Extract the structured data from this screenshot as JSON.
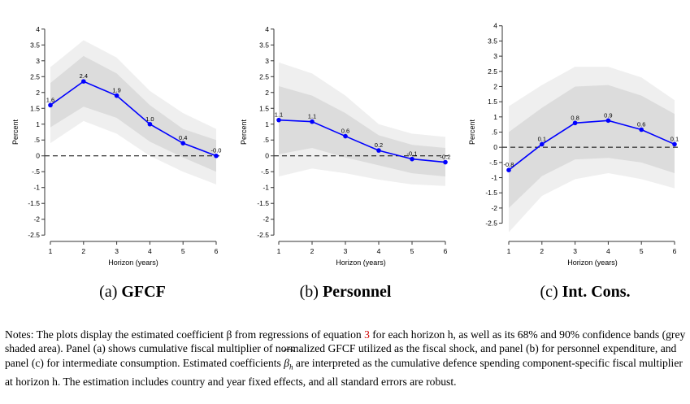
{
  "chart_data": [
    {
      "type": "line",
      "panel": "a",
      "caption_letter": "(a)",
      "caption_label": "GFCF",
      "xlabel": "Horizon (years)",
      "ylabel": "Percent",
      "x": [
        1,
        2,
        3,
        4,
        5,
        6
      ],
      "xticks": [
        "1",
        "2",
        "3",
        "4",
        "5",
        "6"
      ],
      "values": [
        1.6,
        2.35,
        1.9,
        1.0,
        0.4,
        0.0
      ],
      "data_labels": [
        "1.6",
        "2.4",
        "1.9",
        "1.0",
        "0.4",
        "-0.0"
      ],
      "ci68_low": [
        0.9,
        1.55,
        1.2,
        0.45,
        -0.05,
        -0.5
      ],
      "ci68_high": [
        2.3,
        3.15,
        2.6,
        1.6,
        0.85,
        0.5
      ],
      "ci90_low": [
        0.4,
        1.1,
        0.7,
        0.0,
        -0.5,
        -0.9
      ],
      "ci90_high": [
        2.8,
        3.65,
        3.1,
        2.05,
        1.35,
        0.85
      ],
      "ylim": [
        -2.7,
        4.2
      ],
      "yticks": [
        -2.5,
        -2,
        -1.5,
        -1,
        -0.5,
        0,
        0.5,
        1,
        1.5,
        2,
        2.5,
        3,
        3.5,
        4
      ],
      "ytick_labels": [
        "-2.5",
        "-2",
        "-1.5",
        "-1",
        "-.5",
        "0",
        ".5",
        "1",
        "1.5",
        "2",
        "2.5",
        "3",
        "3.5",
        "4"
      ],
      "line_color": "#0000ff",
      "band68_color": "#dcdcdc",
      "band90_color": "#efefef"
    },
    {
      "type": "line",
      "panel": "b",
      "caption_letter": "(b)",
      "caption_label": "Personnel",
      "xlabel": "Horizon (years)",
      "ylabel": "Percent",
      "x": [
        1,
        2,
        3,
        4,
        5,
        6
      ],
      "xticks": [
        "1",
        "2",
        "3",
        "4",
        "5",
        "6"
      ],
      "values": [
        1.13,
        1.08,
        0.62,
        0.17,
        -0.1,
        -0.2
      ],
      "data_labels": [
        "1.1",
        "1.1",
        "0.6",
        "0.2",
        "-0.1",
        "-0.2"
      ],
      "ci68_low": [
        0.05,
        0.25,
        -0.05,
        -0.3,
        -0.55,
        -0.65
      ],
      "ci68_high": [
        2.2,
        1.9,
        1.35,
        0.65,
        0.35,
        0.25
      ],
      "ci90_low": [
        -0.65,
        -0.4,
        -0.55,
        -0.75,
        -0.9,
        -0.95
      ],
      "ci90_high": [
        2.95,
        2.6,
        1.9,
        1.0,
        0.7,
        0.6
      ],
      "ylim": [
        -2.7,
        4.2
      ],
      "yticks": [
        -2.5,
        -2,
        -1.5,
        -1,
        -0.5,
        0,
        0.5,
        1,
        1.5,
        2,
        2.5,
        3,
        3.5,
        4
      ],
      "ytick_labels": [
        "-2.5",
        "-2",
        "-1.5",
        "-1",
        "-.5",
        "0",
        ".5",
        "1",
        "1.5",
        "2",
        "2.5",
        "3",
        "3.5",
        "4"
      ],
      "line_color": "#0000ff",
      "band68_color": "#dcdcdc",
      "band90_color": "#efefef"
    },
    {
      "type": "line",
      "panel": "c",
      "caption_letter": "(c)",
      "caption_label": "Int. Cons.",
      "xlabel": "Horizon (years)",
      "ylabel": "Percent",
      "x": [
        1,
        2,
        3,
        4,
        5,
        6
      ],
      "xticks": [
        "1",
        "2",
        "3",
        "4",
        "5",
        "6"
      ],
      "values": [
        -0.75,
        0.1,
        0.8,
        0.88,
        0.58,
        0.1
      ],
      "data_labels": [
        "-0.8",
        "0.1",
        "0.8",
        "0.9",
        "0.6",
        "0.1"
      ],
      "ci68_low": [
        -2.0,
        -0.95,
        -0.4,
        -0.35,
        -0.5,
        -0.85
      ],
      "ci68_high": [
        0.5,
        1.3,
        2.0,
        2.05,
        1.7,
        1.1
      ],
      "ci90_low": [
        -2.8,
        -1.6,
        -1.05,
        -0.85,
        -1.05,
        -1.35
      ],
      "ci90_high": [
        1.35,
        2.05,
        2.65,
        2.65,
        2.3,
        1.55
      ],
      "ylim": [
        -3.1,
        4.1
      ],
      "yticks": [
        -2.5,
        -2,
        -1.5,
        -1,
        -0.5,
        0,
        0.5,
        1,
        1.5,
        2,
        2.5,
        3,
        3.5,
        4
      ],
      "ytick_labels": [
        "-2.5",
        "-2",
        "-1.5",
        "-1",
        "-.5",
        "0",
        ".5",
        "1",
        "1.5",
        "2",
        "2.5",
        "3",
        "3.5",
        "4"
      ],
      "line_color": "#0000ff",
      "band68_color": "#dcdcdc",
      "band90_color": "#efefef"
    }
  ],
  "notes": {
    "part1": "Notes: The plots display the estimated coefficient β from regressions of equation ",
    "eq_number": "3",
    "part2": " for each horizon h, as well as its 68% and 90% confidence bands (grey shaded area). Panel (a) shows cumulative fiscal multiplier of normalized GFCF utilized as the fiscal shock, and panel (b) for personnel expenditure, and panel (c) for intermediate consumption. Estimated coefficients ",
    "beta_symbol": "β",
    "beta_subscript": "h",
    "part3": " are interpreted as the cumulative defence spending component-specific fiscal multiplier at horizon h. The estimation includes country and year fixed effects, and all standard errors are robust."
  }
}
